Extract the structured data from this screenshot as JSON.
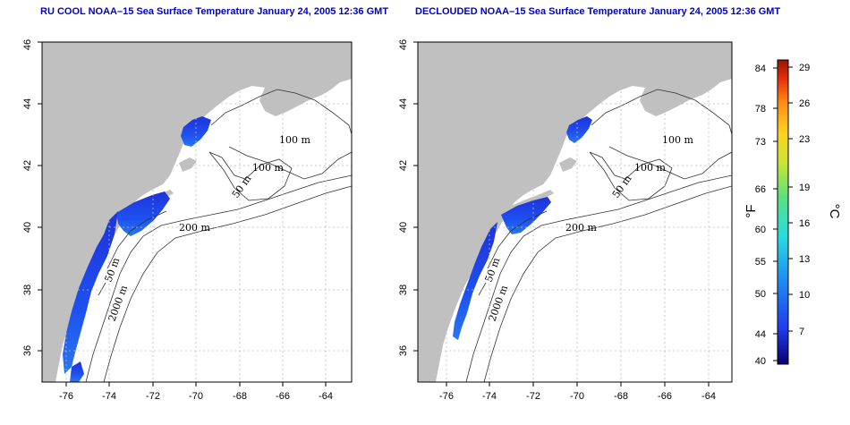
{
  "titles": {
    "left": "RU COOL NOAA–15 Sea Surface Temperature January 24, 2005 12:36 GMT",
    "right": "DECLOUDED NOAA–15 Sea Surface Temperature January 24, 2005 12:36 GMT"
  },
  "map_axes": {
    "lon_ticks": [
      "-76",
      "-74",
      "-72",
      "-70",
      "-68",
      "-66",
      "-64"
    ],
    "lat_ticks": [
      "36",
      "38",
      "40",
      "42",
      "44",
      "46"
    ],
    "lon_range": [
      -77,
      -63
    ],
    "lat_range": [
      35,
      46
    ],
    "grid": "dotted"
  },
  "contour_labels": {
    "left": [
      "100 m",
      "100 m",
      "50 m",
      "200 m",
      "50 m",
      "2000 m"
    ],
    "right": [
      "100 m",
      "100 m",
      "50 m",
      "200 m",
      "50 m",
      "2000 m"
    ]
  },
  "colorbar": {
    "fahrenheit_ticks": [
      "84",
      "78",
      "73",
      "66",
      "60",
      "55",
      "50",
      "44",
      "40"
    ],
    "celsius_ticks": [
      "29",
      "26",
      "23",
      "19",
      "16",
      "13",
      "10",
      "7"
    ],
    "unit_f": "°F",
    "unit_c": "°C",
    "colors": [
      "#0a0070",
      "#1f3df0",
      "#1f8ff0",
      "#28dce0",
      "#5ce080",
      "#c8e632",
      "#ffd21e",
      "#ff8c14",
      "#e62d0a",
      "#961400"
    ]
  },
  "colors": {
    "land": "#c0c0c0",
    "sst_cold": "#1e3ce6",
    "title": "#0000cc"
  }
}
